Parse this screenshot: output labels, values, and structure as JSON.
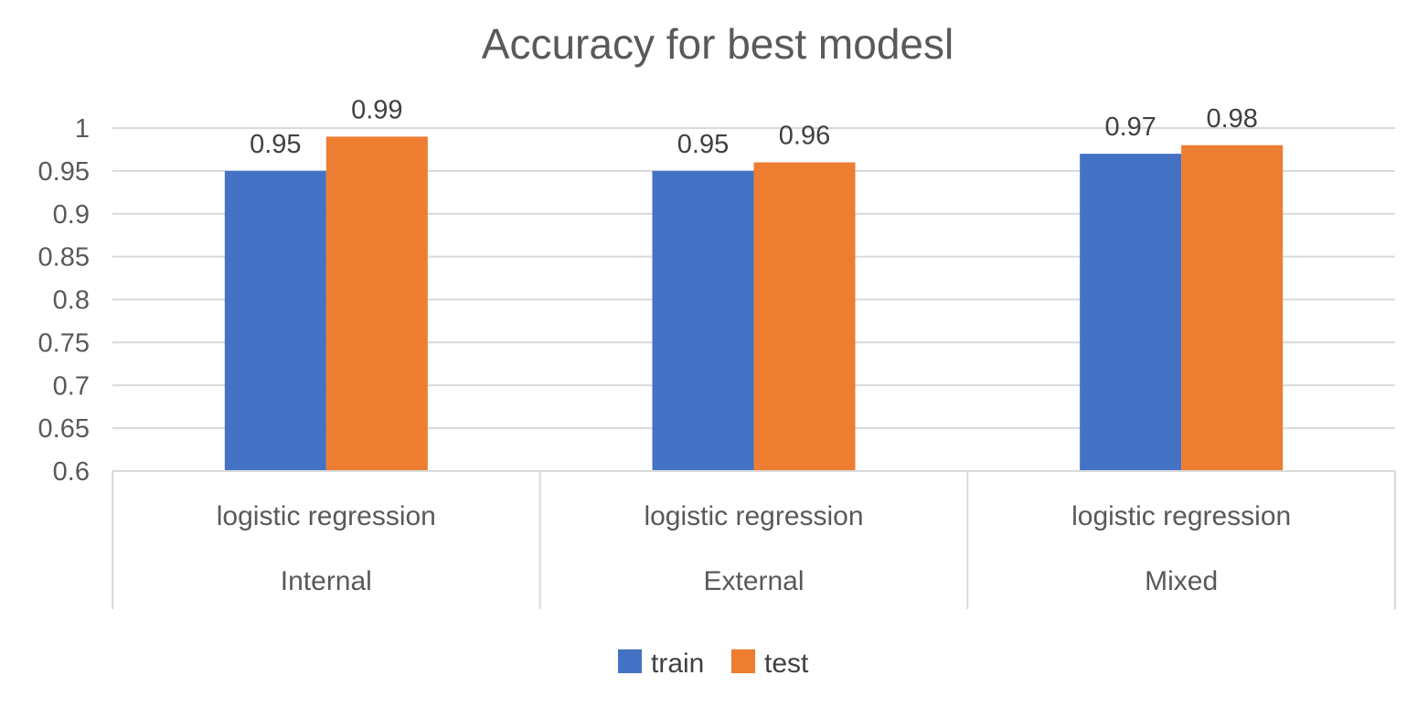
{
  "chart_data": {
    "type": "bar",
    "title": "Accuracy for best modesl",
    "categories": [
      {
        "model": "logistic regression",
        "group": "Internal"
      },
      {
        "model": "logistic regression",
        "group": "External"
      },
      {
        "model": "logistic regression",
        "group": "Mixed"
      }
    ],
    "series": [
      {
        "name": "train",
        "color": "#4472C4",
        "values": [
          0.95,
          0.95,
          0.97
        ]
      },
      {
        "name": "test",
        "color": "#ED7D31",
        "values": [
          0.99,
          0.96,
          0.98
        ]
      }
    ],
    "ylim": [
      0.6,
      1.0
    ],
    "yticks": [
      "0.6",
      "0.65",
      "0.7",
      "0.75",
      "0.8",
      "0.85",
      "0.9",
      "0.95",
      "1"
    ],
    "grid": true,
    "legend_position": "bottom",
    "data_labels": true
  }
}
